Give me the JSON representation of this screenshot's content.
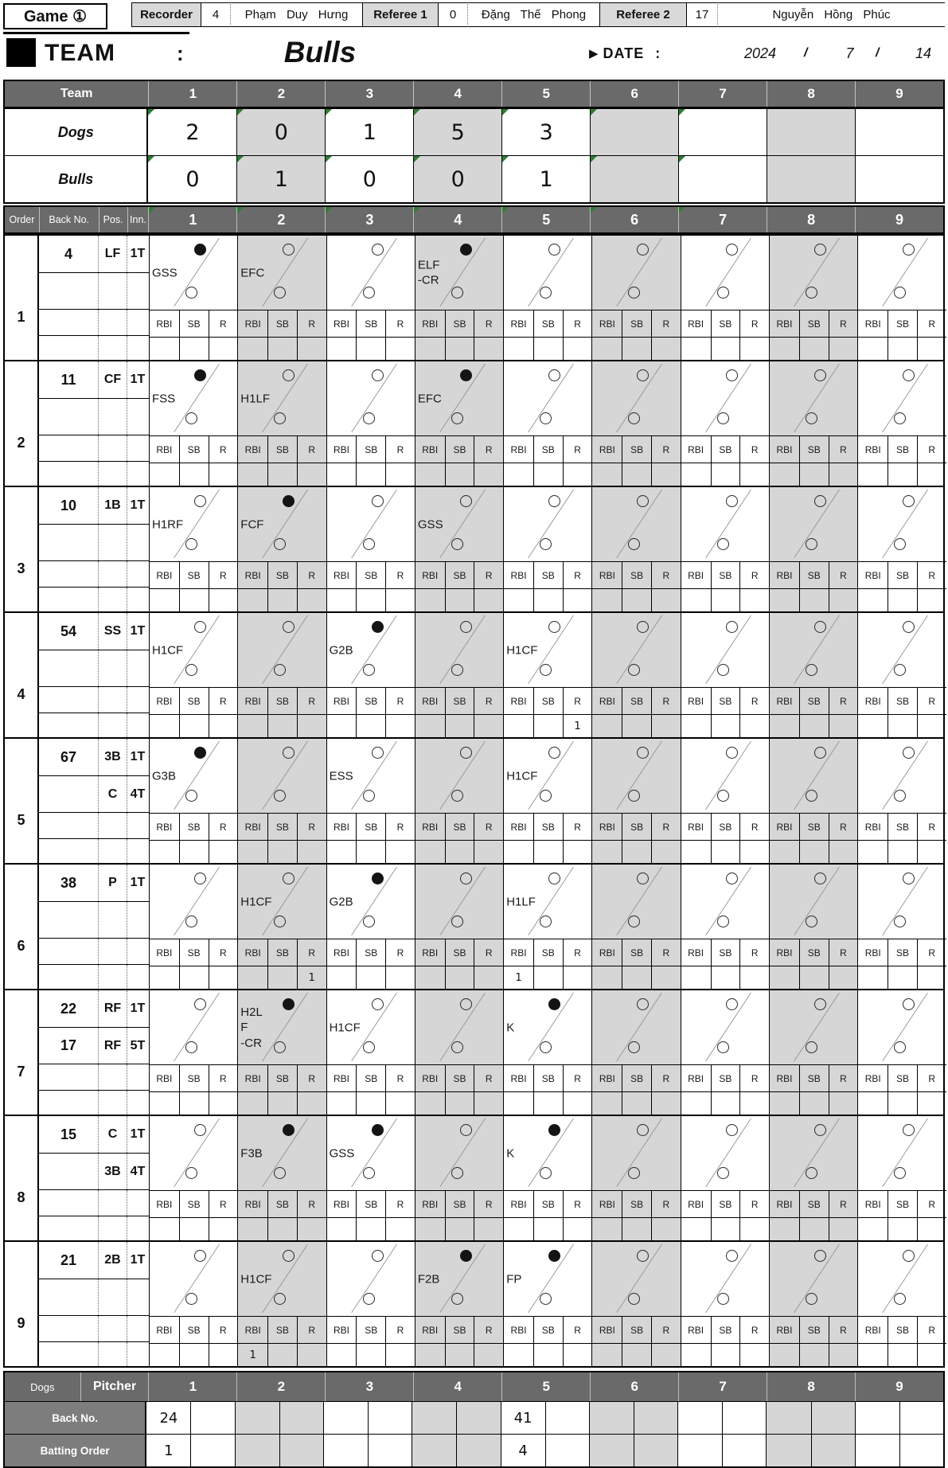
{
  "colors": {
    "header_bg": "#6a6a6a",
    "shaded_column": "#d6d6d6",
    "official_box_bg": "#d9d9d9",
    "pitcher_label_bg": "#7d7d7d",
    "comment_triangle_green": "#2e7d32"
  },
  "top_bar": {
    "game_label": "Game ①",
    "officials": [
      {
        "role": "Recorder",
        "number": "4",
        "name": "Phạm Duy Hưng"
      },
      {
        "role": "Referee 1",
        "number": "0",
        "name": "Đặng Thế Phong"
      },
      {
        "role": "Referee 2",
        "number": "17",
        "name": "Nguyễn Hồng Phúc"
      }
    ]
  },
  "team_bar": {
    "team_label": "TEAM",
    "colon": ":",
    "team_name": "Bulls",
    "date_marker": "▶",
    "date_label": "DATE",
    "date_colon": ":",
    "year": "2024",
    "slash1": "/",
    "month": "7",
    "slash2": "/",
    "day": "14"
  },
  "score_table": {
    "team_header": "Team",
    "inning_headers": [
      "1",
      "2",
      "3",
      "4",
      "5",
      "6",
      "7",
      "8",
      "9"
    ],
    "comment_cols": [
      1,
      2,
      3,
      4,
      5,
      6,
      7
    ],
    "rows": [
      {
        "team": "Dogs",
        "scores": [
          "2",
          "0",
          "1",
          "5",
          "3",
          "",
          "",
          "",
          ""
        ]
      },
      {
        "team": "Bulls",
        "scores": [
          "0",
          "1",
          "0",
          "0",
          "1",
          "",
          "",
          "",
          ""
        ]
      }
    ]
  },
  "grid": {
    "column_headers": {
      "order": "Order",
      "back_no": "Back No.",
      "pos": "Pos.",
      "inn": "Inn."
    },
    "inning_headers": [
      "1",
      "2",
      "3",
      "4",
      "5",
      "6",
      "7",
      "8",
      "9"
    ],
    "comment_cols": [
      1,
      2,
      3,
      4,
      5,
      6,
      7
    ],
    "stat_labels": [
      "RBI",
      "SB",
      "R"
    ],
    "players": [
      {
        "order": "1",
        "entries": [
          {
            "back_no": "4",
            "pos": "LF",
            "inn": "1T"
          }
        ],
        "play_labels": [
          "GSS",
          "EFC",
          "",
          "ELF\n-CR",
          "",
          "",
          "",
          "",
          ""
        ],
        "top_circle_filled": [
          true,
          false,
          false,
          true,
          false,
          false,
          false,
          false,
          false
        ],
        "stats": [
          [
            "",
            "",
            ""
          ],
          [
            "",
            "",
            ""
          ],
          [
            "",
            "",
            ""
          ],
          [
            "",
            "",
            ""
          ],
          [
            "",
            "",
            ""
          ],
          [
            "",
            "",
            ""
          ],
          [
            "",
            "",
            ""
          ],
          [
            "",
            "",
            ""
          ],
          [
            "",
            "",
            ""
          ]
        ]
      },
      {
        "order": "2",
        "entries": [
          {
            "back_no": "11",
            "pos": "CF",
            "inn": "1T"
          }
        ],
        "play_labels": [
          "FSS",
          "H1LF",
          "",
          "EFC",
          "",
          "",
          "",
          "",
          ""
        ],
        "top_circle_filled": [
          true,
          false,
          false,
          true,
          false,
          false,
          false,
          false,
          false
        ],
        "stats": [
          [
            "",
            "",
            ""
          ],
          [
            "",
            "",
            ""
          ],
          [
            "",
            "",
            ""
          ],
          [
            "",
            "",
            ""
          ],
          [
            "",
            "",
            ""
          ],
          [
            "",
            "",
            ""
          ],
          [
            "",
            "",
            ""
          ],
          [
            "",
            "",
            ""
          ],
          [
            "",
            "",
            ""
          ]
        ]
      },
      {
        "order": "3",
        "entries": [
          {
            "back_no": "10",
            "pos": "1B",
            "inn": "1T"
          }
        ],
        "play_labels": [
          "H1RF",
          "FCF",
          "",
          "GSS",
          "",
          "",
          "",
          "",
          ""
        ],
        "top_circle_filled": [
          false,
          true,
          false,
          false,
          false,
          false,
          false,
          false,
          false
        ],
        "stats": [
          [
            "",
            "",
            ""
          ],
          [
            "",
            "",
            ""
          ],
          [
            "",
            "",
            ""
          ],
          [
            "",
            "",
            ""
          ],
          [
            "",
            "",
            ""
          ],
          [
            "",
            "",
            ""
          ],
          [
            "",
            "",
            ""
          ],
          [
            "",
            "",
            ""
          ],
          [
            "",
            "",
            ""
          ]
        ]
      },
      {
        "order": "4",
        "entries": [
          {
            "back_no": "54",
            "pos": "SS",
            "inn": "1T"
          }
        ],
        "play_labels": [
          "H1CF",
          "",
          "G2B",
          "",
          "H1CF",
          "",
          "",
          "",
          ""
        ],
        "top_circle_filled": [
          false,
          false,
          true,
          false,
          false,
          false,
          false,
          false,
          false
        ],
        "stats": [
          [
            "",
            "",
            ""
          ],
          [
            "",
            "",
            ""
          ],
          [
            "",
            "",
            ""
          ],
          [
            "",
            "",
            ""
          ],
          [
            "",
            "",
            "1"
          ],
          [
            "",
            "",
            ""
          ],
          [
            "",
            "",
            ""
          ],
          [
            "",
            "",
            ""
          ],
          [
            "",
            "",
            ""
          ]
        ]
      },
      {
        "order": "5",
        "entries": [
          {
            "back_no": "67",
            "pos": "3B",
            "inn": "1T"
          },
          {
            "back_no": "",
            "pos": "C",
            "inn": "4T"
          }
        ],
        "play_labels": [
          "G3B",
          "",
          "ESS",
          "",
          "H1CF",
          "",
          "",
          "",
          ""
        ],
        "top_circle_filled": [
          true,
          false,
          false,
          false,
          false,
          false,
          false,
          false,
          false
        ],
        "stats": [
          [
            "",
            "",
            ""
          ],
          [
            "",
            "",
            ""
          ],
          [
            "",
            "",
            ""
          ],
          [
            "",
            "",
            ""
          ],
          [
            "",
            "",
            ""
          ],
          [
            "",
            "",
            ""
          ],
          [
            "",
            "",
            ""
          ],
          [
            "",
            "",
            ""
          ],
          [
            "",
            "",
            ""
          ]
        ]
      },
      {
        "order": "6",
        "entries": [
          {
            "back_no": "38",
            "pos": "P",
            "inn": "1T"
          }
        ],
        "play_labels": [
          "",
          "H1CF",
          "G2B",
          "",
          "H1LF",
          "",
          "",
          "",
          ""
        ],
        "top_circle_filled": [
          false,
          false,
          true,
          false,
          false,
          false,
          false,
          false,
          false
        ],
        "stats": [
          [
            "",
            "",
            ""
          ],
          [
            "",
            "",
            "1"
          ],
          [
            "",
            "",
            ""
          ],
          [
            "",
            "",
            ""
          ],
          [
            "1",
            "",
            ""
          ],
          [
            "",
            "",
            ""
          ],
          [
            "",
            "",
            ""
          ],
          [
            "",
            "",
            ""
          ],
          [
            "",
            "",
            ""
          ]
        ]
      },
      {
        "order": "7",
        "entries": [
          {
            "back_no": "22",
            "pos": "RF",
            "inn": "1T"
          },
          {
            "back_no": "17",
            "pos": "RF",
            "inn": "5T"
          }
        ],
        "play_labels": [
          "",
          "H2L\nF\n-CR",
          "H1CF",
          "",
          "K",
          "",
          "",
          "",
          ""
        ],
        "top_circle_filled": [
          false,
          true,
          false,
          false,
          true,
          false,
          false,
          false,
          false
        ],
        "stats": [
          [
            "",
            "",
            ""
          ],
          [
            "",
            "",
            ""
          ],
          [
            "",
            "",
            ""
          ],
          [
            "",
            "",
            ""
          ],
          [
            "",
            "",
            ""
          ],
          [
            "",
            "",
            ""
          ],
          [
            "",
            "",
            ""
          ],
          [
            "",
            "",
            ""
          ],
          [
            "",
            "",
            ""
          ]
        ]
      },
      {
        "order": "8",
        "entries": [
          {
            "back_no": "15",
            "pos": "C",
            "inn": "1T"
          },
          {
            "back_no": "",
            "pos": "3B",
            "inn": "4T"
          }
        ],
        "play_labels": [
          "",
          "F3B",
          "GSS",
          "",
          "K",
          "",
          "",
          "",
          ""
        ],
        "top_circle_filled": [
          false,
          true,
          true,
          false,
          true,
          false,
          false,
          false,
          false
        ],
        "stats": [
          [
            "",
            "",
            ""
          ],
          [
            "",
            "",
            ""
          ],
          [
            "",
            "",
            ""
          ],
          [
            "",
            "",
            ""
          ],
          [
            "",
            "",
            ""
          ],
          [
            "",
            "",
            ""
          ],
          [
            "",
            "",
            ""
          ],
          [
            "",
            "",
            ""
          ],
          [
            "",
            "",
            ""
          ]
        ]
      },
      {
        "order": "9",
        "entries": [
          {
            "back_no": "21",
            "pos": "2B",
            "inn": "1T"
          }
        ],
        "play_labels": [
          "",
          "H1CF",
          "",
          "F2B",
          "FP",
          "",
          "",
          "",
          ""
        ],
        "top_circle_filled": [
          false,
          false,
          false,
          true,
          true,
          false,
          false,
          false,
          false
        ],
        "stats": [
          [
            "",
            "",
            ""
          ],
          [
            "1",
            "",
            ""
          ],
          [
            "",
            "",
            ""
          ],
          [
            "",
            "",
            ""
          ],
          [
            "",
            "",
            ""
          ],
          [
            "",
            "",
            ""
          ],
          [
            "",
            "",
            ""
          ],
          [
            "",
            "",
            ""
          ],
          [
            "",
            "",
            ""
          ]
        ]
      }
    ]
  },
  "pitcher_table": {
    "team_label": "Dogs",
    "title": "Pitcher",
    "inning_headers": [
      "1",
      "2",
      "3",
      "4",
      "5",
      "6",
      "7",
      "8",
      "9"
    ],
    "rows": [
      {
        "label": "Back No.",
        "values": [
          "24",
          "",
          "",
          "",
          "41",
          "",
          "",
          "",
          ""
        ]
      },
      {
        "label": "Batting Order",
        "values": [
          "1",
          "",
          "",
          "",
          "4",
          "",
          "",
          "",
          ""
        ]
      }
    ]
  }
}
